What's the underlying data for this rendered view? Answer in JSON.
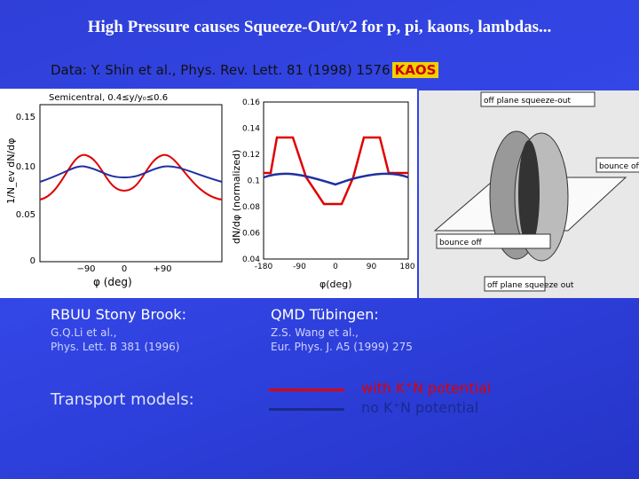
{
  "title": "High Pressure causes Squeeze-Out/v2 for p, pi, kaons, lambdas...",
  "reference": "Data: Y. Shin et al.,  Phys. Rev. Lett. 81 (1998) 1576",
  "logo": "KAOS",
  "left_plot": {
    "header": "Semicentral, 0.4≤y/y₀≤0.6",
    "y_label": "1/N_ev dN/dφ",
    "x_label": "φ (deg)",
    "yticks": [
      "0.15",
      "0.10",
      "0.05",
      "0"
    ],
    "xticks": [
      "−90",
      "0",
      "+90"
    ]
  },
  "middle_plot": {
    "y_label": "dN/dφ (normalized)",
    "x_label": "φ(deg)",
    "yticks": [
      "0.16",
      "0.14",
      "0.12",
      "0.1",
      "0.08",
      "0.06",
      "0.04"
    ],
    "xticks": [
      "-180",
      "-90",
      "0",
      "90",
      "180"
    ]
  },
  "diagram": {
    "labels": [
      "off plane squeeze-out",
      "bounce off",
      "bounce off",
      "off plane squeeze out"
    ]
  },
  "models": [
    {
      "name": "RBUU Stony Brook:",
      "authors": "G.Q.Li et al.,",
      "journal": "Phys. Lett. B 381 (1996)"
    },
    {
      "name": "QMD Tübingen:",
      "authors": "Z.S. Wang et al.,",
      "journal": "Eur. Phys. J. A5 (1999) 275"
    }
  ],
  "legend": {
    "title": "Transport models:",
    "entries": [
      {
        "label": "with K⁺N potential",
        "color": "#e00000"
      },
      {
        "label": "no K⁺N potential",
        "color": "#1a2a90"
      }
    ]
  }
}
